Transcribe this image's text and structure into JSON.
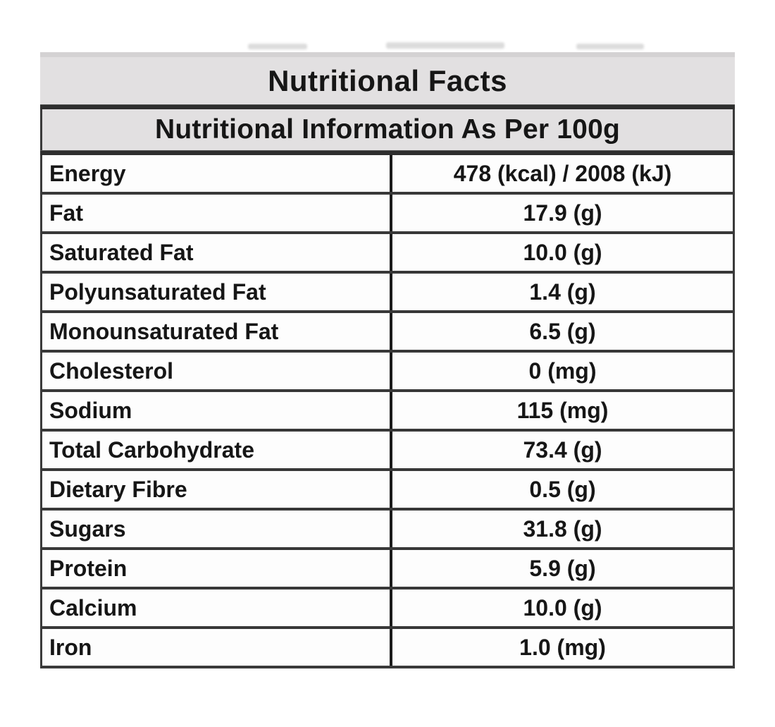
{
  "table": {
    "title": "Nutritional Facts",
    "subtitle": "Nutritional Information As Per 100g",
    "rows": [
      {
        "label": "Energy",
        "value": "478 (kcal) / 2008 (kJ)"
      },
      {
        "label": "Fat",
        "value": "17.9 (g)"
      },
      {
        "label": "Saturated Fat",
        "value": "10.0 (g)"
      },
      {
        "label": "Polyunsaturated Fat",
        "value": "1.4 (g)"
      },
      {
        "label": "Monounsaturated Fat",
        "value": "6.5 (g)"
      },
      {
        "label": "Cholesterol",
        "value": "0 (mg)"
      },
      {
        "label": "Sodium",
        "value": "115 (mg)"
      },
      {
        "label": "Total Carbohydrate",
        "value": "73.4 (g)"
      },
      {
        "label": "Dietary Fibre",
        "value": "0.5 (g)"
      },
      {
        "label": "Sugars",
        "value": "31.8 (g)"
      },
      {
        "label": "Protein",
        "value": "5.9 (g)"
      },
      {
        "label": "Calcium",
        "value": "10.0 (g)"
      },
      {
        "label": "Iron",
        "value": "1.0 (mg)"
      }
    ],
    "colors": {
      "header_bg": "#e2e0e1",
      "border_dark": "#3a3a3a",
      "text": "#161616"
    }
  }
}
